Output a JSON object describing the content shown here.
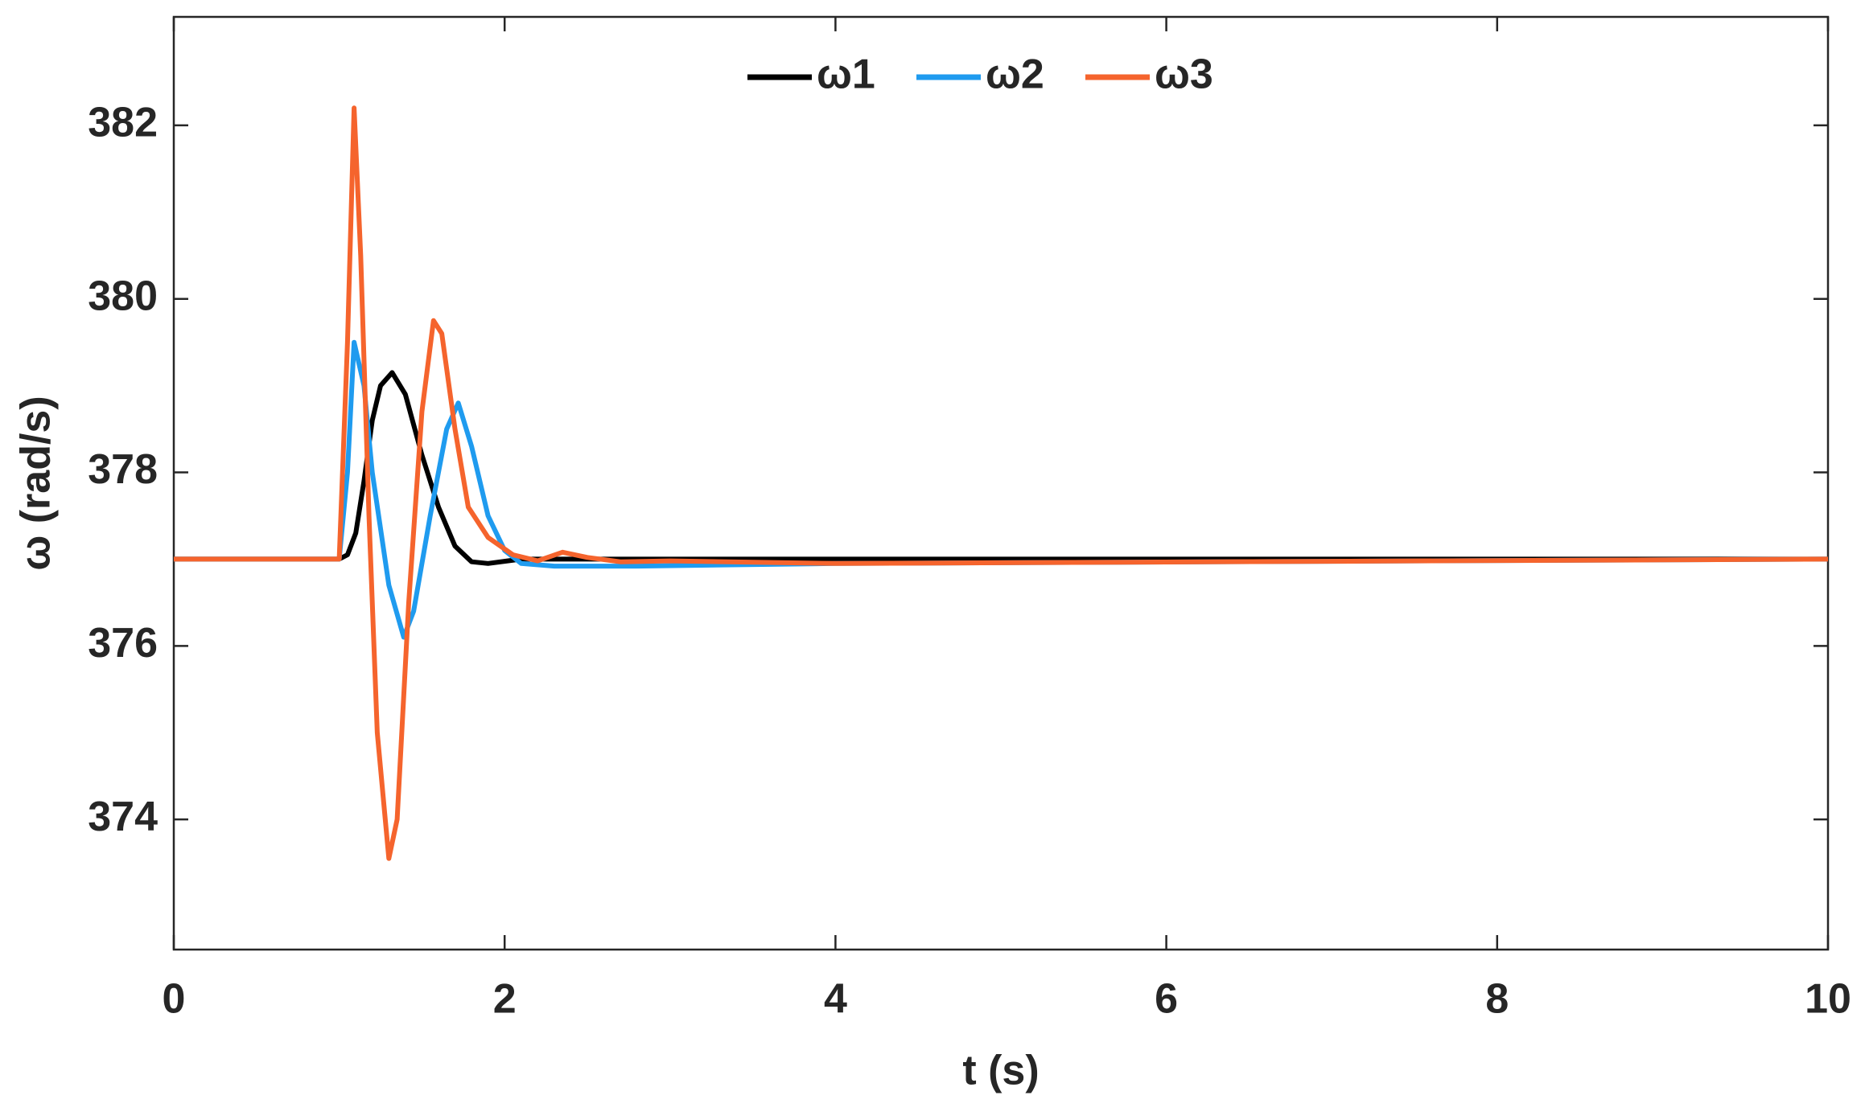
{
  "chart_data": {
    "type": "line",
    "xlabel": "t (s)",
    "ylabel": "ω (rad/s)",
    "xlim": [
      0,
      10
    ],
    "ylim": [
      372.5,
      383.25
    ],
    "xticks": [
      0,
      2,
      4,
      6,
      8,
      10
    ],
    "yticks": [
      374,
      376,
      378,
      380,
      382
    ],
    "grid": false,
    "legend": "top",
    "series": [
      {
        "name": "ω1",
        "color": "#000000",
        "x": [
          0,
          1.0,
          1.05,
          1.1,
          1.15,
          1.2,
          1.25,
          1.32,
          1.4,
          1.5,
          1.6,
          1.7,
          1.8,
          1.9,
          2.1,
          10
        ],
        "values": [
          377,
          377,
          377.05,
          377.3,
          377.9,
          378.6,
          379.0,
          379.15,
          378.9,
          378.2,
          377.6,
          377.15,
          376.97,
          376.95,
          377.0,
          377
        ]
      },
      {
        "name": "ω2",
        "color": "#1f9bef",
        "x": [
          0,
          1.0,
          1.05,
          1.09,
          1.15,
          1.2,
          1.3,
          1.39,
          1.45,
          1.55,
          1.65,
          1.72,
          1.8,
          1.9,
          2.0,
          2.1,
          2.3,
          2.8,
          4,
          10
        ],
        "values": [
          377,
          377,
          378,
          379.5,
          379.0,
          378.0,
          376.7,
          376.1,
          376.4,
          377.5,
          378.5,
          378.8,
          378.3,
          377.5,
          377.1,
          376.95,
          376.92,
          376.92,
          376.95,
          377
        ]
      },
      {
        "name": "ω3",
        "color": "#f5642d",
        "x": [
          0,
          1.0,
          1.05,
          1.09,
          1.13,
          1.18,
          1.23,
          1.3,
          1.35,
          1.42,
          1.5,
          1.57,
          1.62,
          1.7,
          1.78,
          1.9,
          2.05,
          2.2,
          2.35,
          2.5,
          2.7,
          3,
          4,
          10
        ],
        "values": [
          377,
          377,
          379.5,
          382.2,
          380.5,
          377.5,
          375.0,
          373.55,
          374.0,
          376.5,
          378.7,
          379.75,
          379.6,
          378.5,
          377.6,
          377.25,
          377.05,
          376.98,
          377.08,
          377.02,
          376.97,
          376.98,
          376.95,
          377
        ]
      }
    ]
  }
}
